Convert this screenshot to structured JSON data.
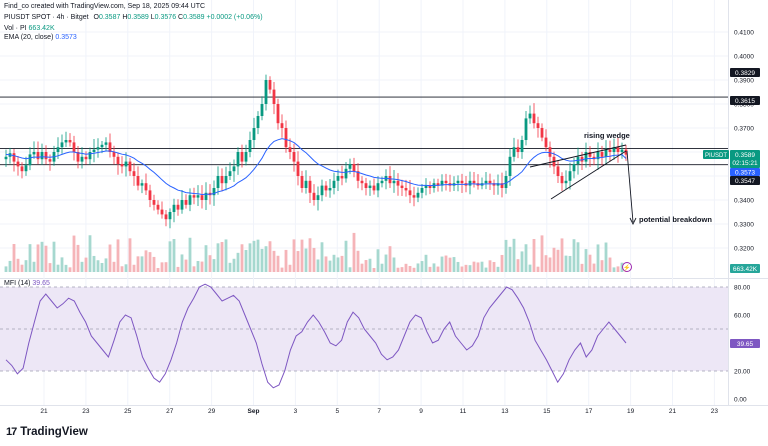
{
  "header": {
    "created_by": "Find_co created with TradingView.com, Sep 18, 2025 09:44 UTC",
    "symbol_line": "PIUSDT SPOT · 4h · Bitget",
    "o_label": "O",
    "o_value": "0.3587",
    "h_label": "H",
    "h_value": "0.3589",
    "l_label": "L",
    "l_value": "0.3576",
    "c_label": "C",
    "c_value": "0.3589",
    "change": "+0.0002 (+0.06%)",
    "vol_label": "Vol · PI",
    "vol_value": "663.42K",
    "ema_label": "EMA (20, close)",
    "ema_value": "0.3573",
    "mfi_label": "MFI (14)",
    "mfi_value": "39.65"
  },
  "branding": {
    "logo_text": "TradingView"
  },
  "colors": {
    "up": "#089981",
    "down": "#f23645",
    "ema": "#2962ff",
    "mfi": "#7e57c2",
    "mfi_band": "#ede7f6",
    "grid": "#f0f3fa"
  },
  "annotations": {
    "rising_wedge": "rising wedge",
    "potential_breakdown": "potential breakdown"
  },
  "price_labels": {
    "r1": "0.3829",
    "r2": "0.3615",
    "symbol_tag": "PIUSDT",
    "last": "0.3589",
    "countdown": "02:15:21",
    "ema_tag": "0.3573",
    "s1": "0.3547",
    "volume": "663.42K",
    "mfi": "39.65"
  },
  "chart_data": [
    {
      "type": "candlestick",
      "title": "PIUSDT SPOT · 4h · Bitget",
      "ylim": [
        0.31,
        0.41
      ],
      "y_ticks": [
        "0.4100",
        "0.4000",
        "0.3900",
        "0.3800",
        "0.3700",
        "0.3600",
        "0.3500",
        "0.3400",
        "0.3300",
        "0.3200"
      ],
      "x_ticks": [
        "21",
        "23",
        "25",
        "27",
        "29",
        "Sep",
        "3",
        "5",
        "7",
        "9",
        "11",
        "13",
        "15",
        "17",
        "19",
        "21",
        "23"
      ],
      "horizontal_levels": [
        0.3829,
        0.3615,
        0.3547
      ],
      "candles_close": [
        0.358,
        0.3595,
        0.356,
        0.354,
        0.352,
        0.3545,
        0.359,
        0.36,
        0.357,
        0.36,
        0.357,
        0.356,
        0.36,
        0.362,
        0.364,
        0.365,
        0.364,
        0.36,
        0.356,
        0.358,
        0.357,
        0.36,
        0.361,
        0.362,
        0.363,
        0.364,
        0.36,
        0.358,
        0.355,
        0.354,
        0.356,
        0.352,
        0.35,
        0.346,
        0.347,
        0.344,
        0.34,
        0.338,
        0.336,
        0.334,
        0.332,
        0.335,
        0.338,
        0.336,
        0.34,
        0.338,
        0.342,
        0.341,
        0.342,
        0.34,
        0.343,
        0.342,
        0.345,
        0.35,
        0.347,
        0.35,
        0.352,
        0.354,
        0.36,
        0.356,
        0.36,
        0.365,
        0.37,
        0.375,
        0.38,
        0.39,
        0.386,
        0.38,
        0.372,
        0.37,
        0.362,
        0.36,
        0.356,
        0.35,
        0.345,
        0.348,
        0.343,
        0.34,
        0.342,
        0.346,
        0.344,
        0.345,
        0.348,
        0.35,
        0.349,
        0.353,
        0.355,
        0.352,
        0.348,
        0.347,
        0.345,
        0.346,
        0.344,
        0.347,
        0.348,
        0.35,
        0.347,
        0.348,
        0.346,
        0.345,
        0.344,
        0.342,
        0.341,
        0.343,
        0.345,
        0.346,
        0.345,
        0.347,
        0.346,
        0.348,
        0.347,
        0.346,
        0.347,
        0.348,
        0.347,
        0.346,
        0.348,
        0.347,
        0.346,
        0.347,
        0.348,
        0.347,
        0.346,
        0.347,
        0.345,
        0.35,
        0.358,
        0.362,
        0.36,
        0.365,
        0.374,
        0.376,
        0.372,
        0.37,
        0.366,
        0.362,
        0.358,
        0.354,
        0.35,
        0.347,
        0.348,
        0.352,
        0.355,
        0.358,
        0.356,
        0.36,
        0.358,
        0.357,
        0.36,
        0.358,
        0.361,
        0.36,
        0.362,
        0.36,
        0.361,
        0.3589
      ],
      "ema_20": [
        0.359,
        0.3588,
        0.3585,
        0.358,
        0.3575,
        0.3572,
        0.3575,
        0.3579,
        0.3578,
        0.358,
        0.3579,
        0.3578,
        0.358,
        0.3584,
        0.359,
        0.3596,
        0.36,
        0.36,
        0.3596,
        0.3594,
        0.3591,
        0.3593,
        0.3595,
        0.3598,
        0.3601,
        0.3604,
        0.3604,
        0.3601,
        0.3596,
        0.3591,
        0.3588,
        0.3582,
        0.3574,
        0.3562,
        0.3553,
        0.3542,
        0.3528,
        0.3515,
        0.35,
        0.3484,
        0.3469,
        0.3458,
        0.345,
        0.3441,
        0.3437,
        0.3431,
        0.3429,
        0.3427,
        0.3426,
        0.3423,
        0.3424,
        0.3424,
        0.3427,
        0.3434,
        0.3438,
        0.3444,
        0.3451,
        0.3459,
        0.3473,
        0.3482,
        0.3493,
        0.3509,
        0.3528,
        0.355,
        0.3574,
        0.3605,
        0.3628,
        0.3644,
        0.3651,
        0.3656,
        0.3652,
        0.3647,
        0.3639,
        0.3626,
        0.3609,
        0.3597,
        0.3581,
        0.3564,
        0.355,
        0.3542,
        0.3533,
        0.3525,
        0.352,
        0.3518,
        0.3515,
        0.3516,
        0.3519,
        0.3519,
        0.3515,
        0.351,
        0.3504,
        0.35,
        0.3494,
        0.3492,
        0.349,
        0.3491,
        0.3488,
        0.3487,
        0.3485,
        0.3481,
        0.3477,
        0.3471,
        0.3466,
        0.3462,
        0.3461,
        0.3461,
        0.346,
        0.3461,
        0.3461,
        0.3463,
        0.3464,
        0.3464,
        0.3464,
        0.3465,
        0.3465,
        0.3465,
        0.3467,
        0.3467,
        0.3466,
        0.3466,
        0.3467,
        0.3467,
        0.3467,
        0.3467,
        0.3466,
        0.347,
        0.348,
        0.3493,
        0.3504,
        0.3518,
        0.354,
        0.3562,
        0.3578,
        0.359,
        0.3597,
        0.3599,
        0.3597,
        0.3592,
        0.3584,
        0.3573,
        0.3566,
        0.3562,
        0.3563,
        0.3566,
        0.3567,
        0.3572,
        0.3573,
        0.3573,
        0.3576,
        0.3577,
        0.358,
        0.3582,
        0.3586,
        0.3587,
        0.3589,
        0.3573
      ]
    },
    {
      "type": "bar",
      "title": "Vol · PI",
      "last_value": "663.42K"
    },
    {
      "type": "line",
      "title": "MFI (14)",
      "ylim": [
        0,
        100
      ],
      "y_ticks": [
        "80.00",
        "60.00",
        "40.00",
        "20.00",
        "0.00"
      ],
      "band": [
        20,
        80
      ],
      "last_value": 39.65,
      "values": [
        28,
        24,
        18,
        22,
        40,
        55,
        70,
        75,
        70,
        65,
        68,
        72,
        70,
        62,
        55,
        45,
        40,
        35,
        30,
        42,
        55,
        60,
        58,
        45,
        30,
        22,
        15,
        12,
        18,
        28,
        40,
        55,
        65,
        72,
        80,
        82,
        80,
        75,
        70,
        72,
        74,
        70,
        60,
        50,
        40,
        25,
        12,
        8,
        10,
        20,
        35,
        45,
        48,
        55,
        60,
        55,
        48,
        40,
        38,
        42,
        55,
        62,
        58,
        50,
        45,
        40,
        32,
        28,
        30,
        35,
        45,
        55,
        60,
        58,
        48,
        40,
        42,
        50,
        55,
        45,
        40,
        35,
        38,
        45,
        58,
        65,
        70,
        75,
        80,
        78,
        72,
        65,
        55,
        42,
        35,
        28,
        20,
        12,
        18,
        28,
        35,
        40,
        30,
        35,
        45,
        50,
        55,
        50,
        45,
        40
      ]
    }
  ]
}
